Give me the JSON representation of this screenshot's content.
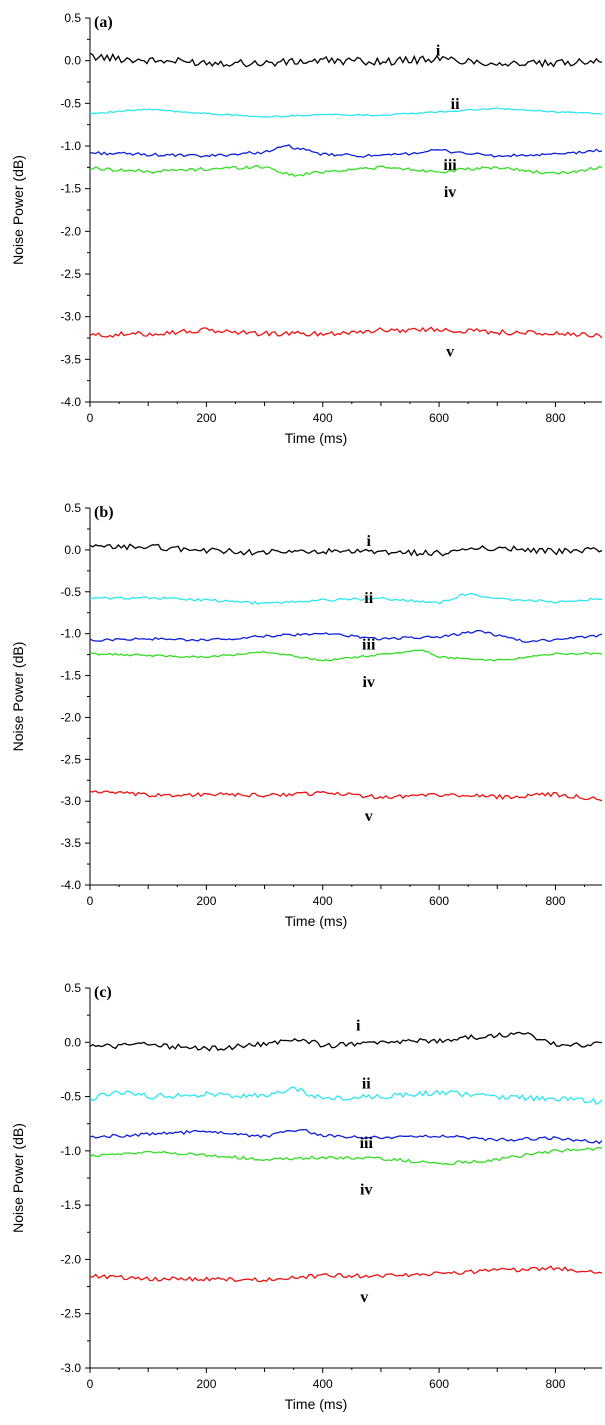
{
  "chart_data": [
    {
      "type": "line",
      "panel_label": "(a)",
      "xlabel": "Time (ms)",
      "ylabel": "Noise Power (dB)",
      "xlim": [
        0,
        880
      ],
      "ylim": [
        -4.0,
        0.5
      ],
      "xticks": [
        "0",
        "200",
        "400",
        "600",
        "800"
      ],
      "yticks": [
        "0.5",
        "0.0",
        "-0.5",
        "-1.0",
        "-1.5",
        "-2.0",
        "-2.5",
        "-3.0",
        "-3.5",
        "-4.0"
      ],
      "grid": false,
      "series": [
        {
          "name": "i",
          "color": "#000000",
          "level": 0.0,
          "amp": 0.045,
          "x": [
            0,
            100,
            200,
            300,
            400,
            500,
            600,
            700,
            800,
            880
          ],
          "y": [
            0.05,
            0.0,
            -0.02,
            -0.03,
            0.0,
            -0.01,
            0.02,
            -0.03,
            -0.04,
            0.02
          ]
        },
        {
          "name": "ii",
          "color": "#2ee6f0",
          "level": -0.6,
          "amp": 0.008,
          "x": [
            0,
            100,
            200,
            300,
            400,
            500,
            600,
            700,
            800,
            880
          ],
          "y": [
            -0.62,
            -0.57,
            -0.62,
            -0.66,
            -0.63,
            -0.64,
            -0.6,
            -0.56,
            -0.6,
            -0.62
          ]
        },
        {
          "name": "iii",
          "color": "#1020d8",
          "level": -1.1,
          "amp": 0.018,
          "x": [
            0,
            100,
            200,
            300,
            340,
            400,
            500,
            600,
            700,
            800,
            880
          ],
          "y": [
            -1.08,
            -1.1,
            -1.12,
            -1.07,
            -1.0,
            -1.1,
            -1.12,
            -1.05,
            -1.12,
            -1.1,
            -1.05
          ]
        },
        {
          "name": "iv",
          "color": "#33dd22",
          "level": -1.28,
          "amp": 0.02,
          "x": [
            0,
            100,
            200,
            300,
            350,
            400,
            500,
            600,
            700,
            800,
            880
          ],
          "y": [
            -1.26,
            -1.3,
            -1.27,
            -1.24,
            -1.35,
            -1.3,
            -1.25,
            -1.3,
            -1.25,
            -1.33,
            -1.25
          ]
        },
        {
          "name": "v",
          "color": "#ee1111",
          "level": -3.2,
          "amp": 0.03,
          "x": [
            0,
            100,
            200,
            300,
            400,
            500,
            600,
            700,
            800,
            880
          ],
          "y": [
            -3.22,
            -3.2,
            -3.16,
            -3.2,
            -3.2,
            -3.16,
            -3.15,
            -3.18,
            -3.2,
            -3.23
          ]
        }
      ],
      "label_x": [
        490,
        490,
        490,
        490,
        490
      ]
    },
    {
      "type": "line",
      "panel_label": "(b)",
      "xlabel": "Time (ms)",
      "ylabel": "Noise Power (dB)",
      "xlim": [
        0,
        880
      ],
      "ylim": [
        -4.0,
        0.5
      ],
      "xticks": [
        "0",
        "200",
        "400",
        "600",
        "800"
      ],
      "yticks": [
        "0.5",
        "0.0",
        "-0.5",
        "-1.0",
        "-1.5",
        "-2.0",
        "-2.5",
        "-3.0",
        "-3.5",
        "-4.0"
      ],
      "grid": false,
      "series": [
        {
          "name": "i",
          "color": "#000000",
          "level": 0.0,
          "amp": 0.035,
          "x": [
            0,
            100,
            200,
            300,
            400,
            500,
            600,
            700,
            800,
            880
          ],
          "y": [
            0.03,
            0.04,
            -0.01,
            -0.03,
            -0.02,
            -0.03,
            -0.04,
            0.03,
            -0.02,
            0.0
          ]
        },
        {
          "name": "ii",
          "color": "#2ee6f0",
          "level": -0.6,
          "amp": 0.015,
          "x": [
            0,
            100,
            200,
            300,
            400,
            500,
            600,
            650,
            700,
            800,
            880
          ],
          "y": [
            -0.58,
            -0.57,
            -0.6,
            -0.64,
            -0.6,
            -0.58,
            -0.63,
            -0.52,
            -0.58,
            -0.62,
            -0.58
          ]
        },
        {
          "name": "iii",
          "color": "#1020d8",
          "level": -1.05,
          "amp": 0.015,
          "x": [
            0,
            100,
            200,
            300,
            400,
            500,
            600,
            670,
            750,
            880
          ],
          "y": [
            -1.08,
            -1.06,
            -1.08,
            -1.03,
            -1.0,
            -1.06,
            -1.04,
            -0.97,
            -1.1,
            -1.02
          ]
        },
        {
          "name": "iv",
          "color": "#33dd22",
          "level": -1.25,
          "amp": 0.012,
          "x": [
            0,
            100,
            200,
            300,
            400,
            500,
            570,
            600,
            700,
            800,
            880
          ],
          "y": [
            -1.24,
            -1.26,
            -1.28,
            -1.22,
            -1.32,
            -1.25,
            -1.19,
            -1.28,
            -1.32,
            -1.24,
            -1.24
          ]
        },
        {
          "name": "v",
          "color": "#ee1111",
          "level": -2.92,
          "amp": 0.025,
          "x": [
            0,
            100,
            200,
            300,
            400,
            500,
            600,
            700,
            800,
            880
          ],
          "y": [
            -2.88,
            -2.93,
            -2.92,
            -2.93,
            -2.9,
            -2.95,
            -2.92,
            -2.95,
            -2.92,
            -2.98
          ]
        }
      ],
      "label_x": [
        620,
        620,
        620,
        620,
        620
      ]
    },
    {
      "type": "line",
      "panel_label": "(c)",
      "xlabel": "Time (ms)",
      "ylabel": "Noise Power (dB)",
      "xlim": [
        0,
        880
      ],
      "ylim": [
        -3.0,
        0.5
      ],
      "xticks": [
        "0",
        "200",
        "400",
        "600",
        "800"
      ],
      "yticks": [
        "0.5",
        "0.0",
        "-0.5",
        "-1.0",
        "-1.5",
        "-2.0",
        "-2.5",
        "-3.0"
      ],
      "grid": false,
      "series": [
        {
          "name": "i",
          "color": "#000000",
          "level": -0.02,
          "amp": 0.025,
          "x": [
            0,
            100,
            200,
            300,
            360,
            400,
            500,
            600,
            700,
            750,
            800,
            880
          ],
          "y": [
            -0.04,
            -0.02,
            -0.06,
            -0.02,
            0.04,
            -0.03,
            -0.01,
            0.02,
            0.06,
            0.08,
            -0.02,
            -0.02
          ]
        },
        {
          "name": "ii",
          "color": "#2ee6f0",
          "level": -0.5,
          "amp": 0.025,
          "x": [
            0,
            50,
            100,
            200,
            300,
            350,
            400,
            500,
            600,
            700,
            800,
            880
          ],
          "y": [
            -0.52,
            -0.45,
            -0.5,
            -0.48,
            -0.5,
            -0.42,
            -0.52,
            -0.5,
            -0.46,
            -0.5,
            -0.52,
            -0.55
          ]
        },
        {
          "name": "iii",
          "color": "#1020d8",
          "level": -0.86,
          "amp": 0.015,
          "x": [
            0,
            100,
            200,
            300,
            360,
            400,
            500,
            600,
            700,
            800,
            880
          ],
          "y": [
            -0.87,
            -0.85,
            -0.82,
            -0.87,
            -0.8,
            -0.86,
            -0.88,
            -0.86,
            -0.9,
            -0.88,
            -0.92
          ]
        },
        {
          "name": "iv",
          "color": "#33dd22",
          "level": -1.05,
          "amp": 0.015,
          "x": [
            0,
            100,
            200,
            300,
            400,
            500,
            600,
            700,
            800,
            880
          ],
          "y": [
            -1.05,
            -1.01,
            -1.04,
            -1.08,
            -1.06,
            -1.07,
            -1.12,
            -1.08,
            -1.0,
            -0.98
          ]
        },
        {
          "name": "v",
          "color": "#ee1111",
          "level": -2.15,
          "amp": 0.02,
          "x": [
            0,
            100,
            200,
            300,
            400,
            500,
            600,
            700,
            800,
            880
          ],
          "y": [
            -2.15,
            -2.18,
            -2.18,
            -2.19,
            -2.15,
            -2.15,
            -2.13,
            -2.1,
            -2.08,
            -2.13
          ]
        }
      ],
      "label_x": [
        590,
        590,
        590,
        590,
        590
      ]
    }
  ]
}
